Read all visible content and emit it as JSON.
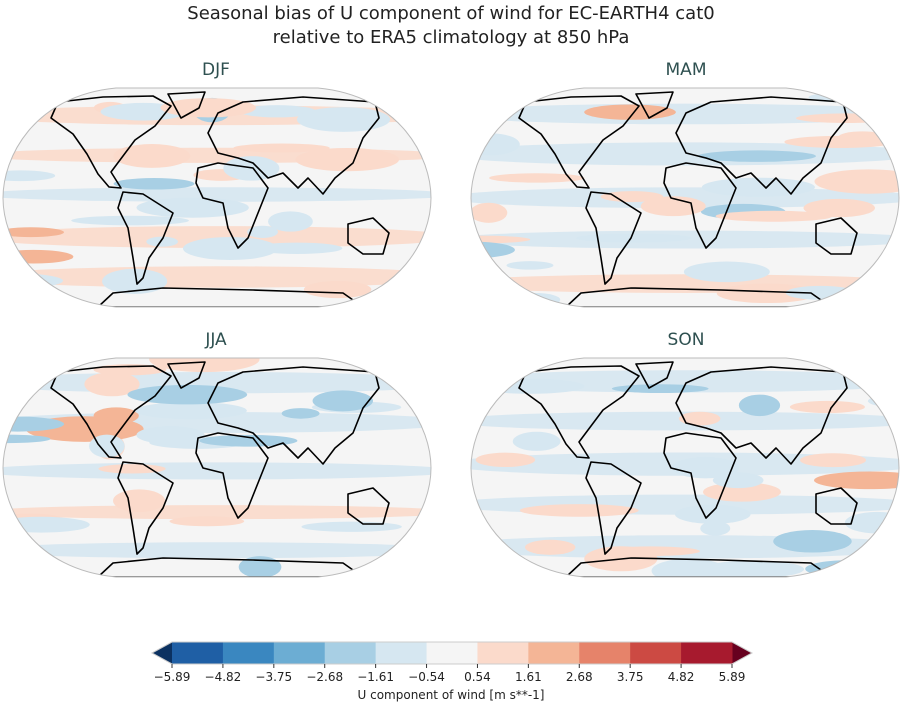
{
  "title": {
    "line1": "Seasonal bias of U component of wind for EC-EARTH4 cat0",
    "line2": "relative to ERA5 climatology at 850 hPa"
  },
  "panels": [
    {
      "label": "DJF"
    },
    {
      "label": "MAM"
    },
    {
      "label": "JJA"
    },
    {
      "label": "SON"
    }
  ],
  "colorbar": {
    "label": "U component of wind [m s**-1]",
    "ticks": [
      "−5.89",
      "−4.82",
      "−3.75",
      "−2.68",
      "−1.61",
      "−0.54",
      "0.54",
      "1.61",
      "2.68",
      "3.75",
      "4.82",
      "5.89"
    ],
    "colors": [
      "#1f5fa5",
      "#3a87c0",
      "#6cadd3",
      "#a8cfe4",
      "#d6e7f1",
      "#f5f5f5",
      "#fbdacb",
      "#f4b596",
      "#e6836a",
      "#cc4a43",
      "#a71a2e"
    ],
    "under_color": "#0b3161",
    "over_color": "#67001f",
    "extend": "both"
  }
}
